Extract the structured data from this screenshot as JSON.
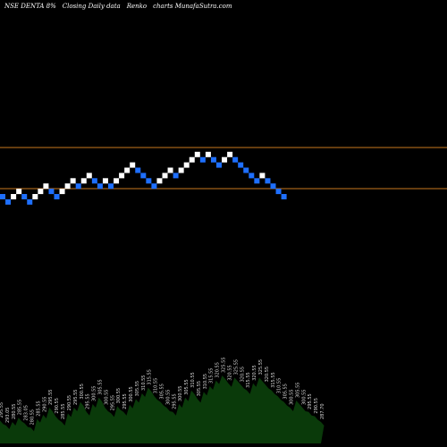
{
  "header": {
    "symbol": "NSE DENTA 8%",
    "subtitle": "Closing Daily data",
    "chart_kind": "Renko",
    "site": "charts MunafaSutra.com"
  },
  "colors": {
    "background": "#000000",
    "up_brick": "#ffffff",
    "down_brick": "#1e6fff",
    "ref_line": "#c8781e",
    "volume_fill": "#0a3a0a",
    "volume_label": "#d8d8d8"
  },
  "chart_data": {
    "type": "renko",
    "x_axis": "brick number",
    "y_axis": "price (in brick steps)",
    "bricks": [
      {
        "dir": "down",
        "level": 0
      },
      {
        "dir": "down",
        "level": -1
      },
      {
        "dir": "up",
        "level": 0
      },
      {
        "dir": "up",
        "level": 1
      },
      {
        "dir": "down",
        "level": 0
      },
      {
        "dir": "down",
        "level": -1
      },
      {
        "dir": "up",
        "level": 0
      },
      {
        "dir": "up",
        "level": 1
      },
      {
        "dir": "up",
        "level": 2
      },
      {
        "dir": "down",
        "level": 1
      },
      {
        "dir": "down",
        "level": 0
      },
      {
        "dir": "up",
        "level": 1
      },
      {
        "dir": "up",
        "level": 2
      },
      {
        "dir": "up",
        "level": 3
      },
      {
        "dir": "down",
        "level": 2
      },
      {
        "dir": "up",
        "level": 3
      },
      {
        "dir": "up",
        "level": 4
      },
      {
        "dir": "down",
        "level": 3
      },
      {
        "dir": "down",
        "level": 2
      },
      {
        "dir": "up",
        "level": 3
      },
      {
        "dir": "down",
        "level": 2
      },
      {
        "dir": "up",
        "level": 3
      },
      {
        "dir": "up",
        "level": 4
      },
      {
        "dir": "up",
        "level": 5
      },
      {
        "dir": "up",
        "level": 6
      },
      {
        "dir": "down",
        "level": 5
      },
      {
        "dir": "down",
        "level": 4
      },
      {
        "dir": "down",
        "level": 3
      },
      {
        "dir": "down",
        "level": 2
      },
      {
        "dir": "up",
        "level": 3
      },
      {
        "dir": "up",
        "level": 4
      },
      {
        "dir": "up",
        "level": 5
      },
      {
        "dir": "down",
        "level": 4
      },
      {
        "dir": "up",
        "level": 5
      },
      {
        "dir": "up",
        "level": 6
      },
      {
        "dir": "up",
        "level": 7
      },
      {
        "dir": "up",
        "level": 8
      },
      {
        "dir": "down",
        "level": 7
      },
      {
        "dir": "up",
        "level": 8
      },
      {
        "dir": "down",
        "level": 7
      },
      {
        "dir": "down",
        "level": 6
      },
      {
        "dir": "up",
        "level": 7
      },
      {
        "dir": "up",
        "level": 8
      },
      {
        "dir": "down",
        "level": 7
      },
      {
        "dir": "down",
        "level": 6
      },
      {
        "dir": "down",
        "level": 5
      },
      {
        "dir": "down",
        "level": 4
      },
      {
        "dir": "down",
        "level": 3
      },
      {
        "dir": "up",
        "level": 4
      },
      {
        "dir": "down",
        "level": 3
      },
      {
        "dir": "down",
        "level": 2
      },
      {
        "dir": "down",
        "level": 1
      },
      {
        "dir": "down",
        "level": 0
      }
    ],
    "volume_labels": [
      "295.55",
      "293.05",
      "280.55",
      "285.55",
      "283.05",
      "280.55",
      "285.55",
      "290.55",
      "295.55",
      "290.55",
      "285.55",
      "290.55",
      "295.55",
      "300.55",
      "295.55",
      "300.55",
      "305.55",
      "300.55",
      "295.55",
      "300.55",
      "295.55",
      "300.55",
      "305.55",
      "310.55",
      "315.55",
      "310.55",
      "305.55",
      "300.55",
      "295.55",
      "300.55",
      "305.55",
      "310.55",
      "305.55",
      "310.55",
      "315.55",
      "320.55",
      "325.55",
      "320.55",
      "325.55",
      "320.55",
      "315.55",
      "320.55",
      "325.55",
      "320.55",
      "315.55",
      "310.55",
      "305.55",
      "300.55",
      "305.55",
      "300.55",
      "295.55",
      "290.55",
      "287.70"
    ],
    "volume_levels": [
      0.32,
      0.25,
      0.3,
      0.36,
      0.28,
      0.22,
      0.34,
      0.4,
      0.5,
      0.38,
      0.3,
      0.42,
      0.5,
      0.58,
      0.44,
      0.55,
      0.64,
      0.5,
      0.42,
      0.52,
      0.44,
      0.54,
      0.62,
      0.7,
      0.78,
      0.66,
      0.58,
      0.5,
      0.44,
      0.55,
      0.64,
      0.74,
      0.62,
      0.72,
      0.8,
      0.88,
      0.95,
      0.84,
      0.92,
      0.82,
      0.74,
      0.84,
      0.92,
      0.82,
      0.74,
      0.66,
      0.58,
      0.5,
      0.6,
      0.5,
      0.44,
      0.38,
      0.3
    ],
    "reference_lines": 2
  }
}
